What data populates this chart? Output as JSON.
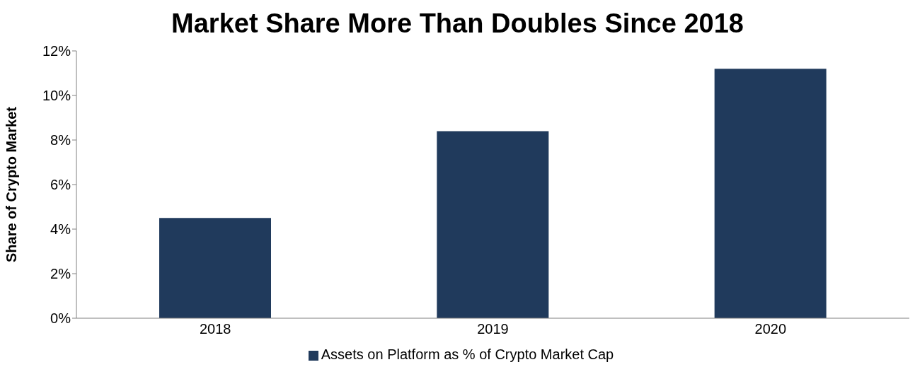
{
  "chart_data": {
    "type": "bar",
    "title": "Market Share More Than Doubles Since 2018",
    "ylabel": "Share of Crypto Market",
    "categories": [
      "2018",
      "2019",
      "2020"
    ],
    "series": [
      {
        "name": "Assets on Platform as % of Crypto Market Cap",
        "color": "#203a5c",
        "values": [
          4.5,
          8.4,
          11.2
        ]
      }
    ],
    "ylim": [
      0,
      12
    ],
    "yticks": [
      {
        "value": 0,
        "label": "0%"
      },
      {
        "value": 2,
        "label": "2%"
      },
      {
        "value": 4,
        "label": "4%"
      },
      {
        "value": 6,
        "label": "6%"
      },
      {
        "value": 8,
        "label": "8%"
      },
      {
        "value": 10,
        "label": "10%"
      },
      {
        "value": 12,
        "label": "12%"
      }
    ],
    "grid": false,
    "legend": "bottom"
  }
}
